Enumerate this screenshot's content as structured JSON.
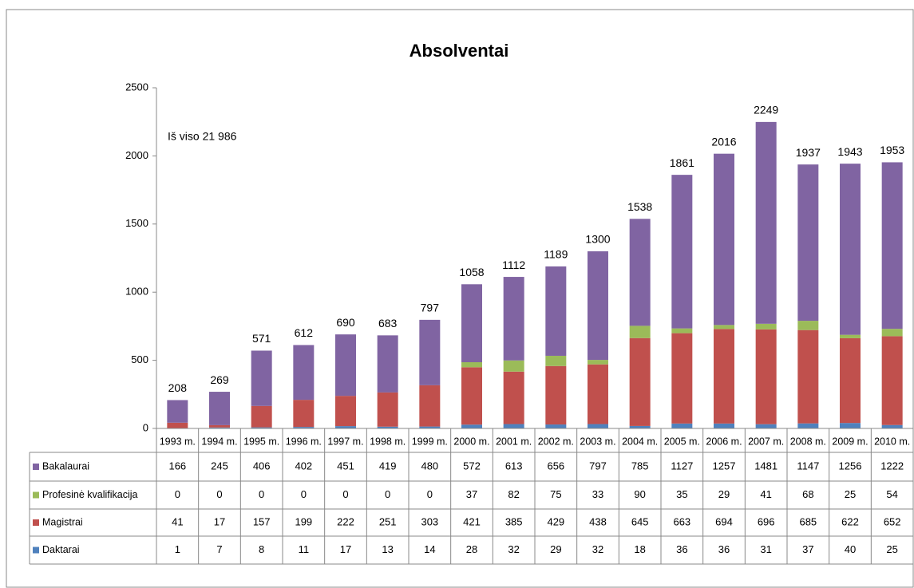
{
  "chart_data": {
    "type": "stacked_bar",
    "title": "Absolventai",
    "annotation": "Iš viso 21 986",
    "categories": [
      "1993 m.",
      "1994 m.",
      "1995 m.",
      "1996 m.",
      "1997 m.",
      "1998 m.",
      "1999 m.",
      "2000 m.",
      "2001 m.",
      "2002 m.",
      "2003 m.",
      "2004 m.",
      "2005 m.",
      "2006 m.",
      "2007 m.",
      "2008 m.",
      "2009 m.",
      "2010 m."
    ],
    "series": [
      {
        "name": "Daktarai",
        "color": "#4f81bd",
        "values": [
          1,
          7,
          8,
          11,
          17,
          13,
          14,
          28,
          32,
          29,
          32,
          18,
          36,
          36,
          31,
          37,
          40,
          25
        ]
      },
      {
        "name": "Magistrai",
        "color": "#c0504d",
        "values": [
          41,
          17,
          157,
          199,
          222,
          251,
          303,
          421,
          385,
          429,
          438,
          645,
          663,
          694,
          696,
          685,
          622,
          652
        ]
      },
      {
        "name": "Profesinė kvalifikacija",
        "color": "#9bbb59",
        "values": [
          0,
          0,
          0,
          0,
          0,
          0,
          0,
          37,
          82,
          75,
          33,
          90,
          35,
          29,
          41,
          68,
          25,
          54
        ]
      },
      {
        "name": "Bakalaurai",
        "color": "#8064a2",
        "values": [
          166,
          245,
          406,
          402,
          451,
          419,
          480,
          572,
          613,
          656,
          797,
          785,
          1127,
          1257,
          1481,
          1147,
          1256,
          1222
        ]
      }
    ],
    "totals": [
      208,
      269,
      571,
      612,
      690,
      683,
      797,
      1058,
      1112,
      1189,
      1300,
      1538,
      1861,
      2016,
      2249,
      1937,
      1943,
      1953
    ],
    "ylim": [
      0,
      2500
    ],
    "yticks": [
      0,
      500,
      1000,
      1500,
      2000,
      2500
    ],
    "grid": false
  }
}
